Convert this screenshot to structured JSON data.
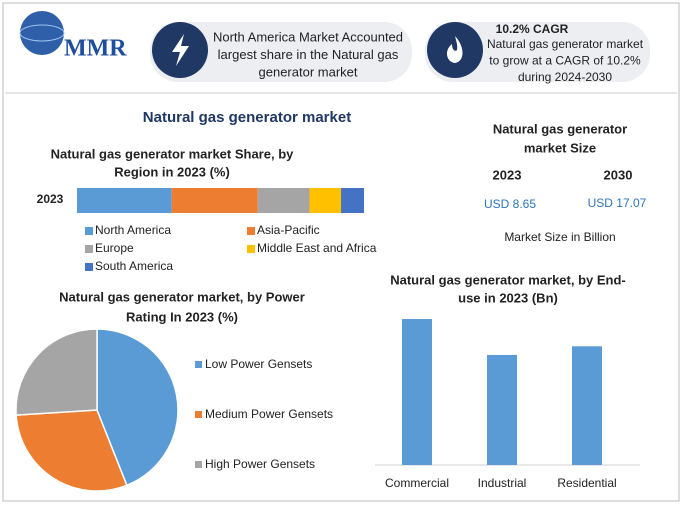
{
  "header": {
    "logo": "MMR",
    "box1_lines": [
      "North America Market Accounted",
      "largest share in the Natural gas",
      "generator market"
    ],
    "box2_title": "10.2% CAGR",
    "box2_lines": [
      "Natural gas generator market",
      "to grow at a CAGR of 10.2%",
      "during 2024-2030"
    ]
  },
  "title": "Natural gas generator market",
  "market_size": {
    "title_lines": [
      "Natural gas generator",
      "market Size"
    ],
    "years": [
      "2023",
      "2030"
    ],
    "values": [
      "USD 8.65",
      "USD 17.07"
    ],
    "note": "Market Size in Billion"
  },
  "chart_data": [
    {
      "type": "stacked-bar",
      "title_lines": [
        "Natural gas generator market Share, by",
        "Region in 2023 (%)"
      ],
      "categories": [
        "2023"
      ],
      "series": [
        {
          "name": "North America",
          "color": "#5b9bd5",
          "values": [
            33
          ]
        },
        {
          "name": "Asia-Pacific",
          "color": "#ed7d31",
          "values": [
            30
          ]
        },
        {
          "name": "Europe",
          "color": "#a5a5a5",
          "values": [
            18
          ]
        },
        {
          "name": "Middle East and Africa",
          "color": "#ffc000",
          "values": [
            11
          ]
        },
        {
          "name": "South America",
          "color": "#4472c4",
          "values": [
            8
          ]
        }
      ]
    },
    {
      "type": "pie",
      "title_lines": [
        "Natural gas generator market, by Power",
        "Rating In 2023 (%)"
      ],
      "categories": [
        "Low Power Gensets",
        "Medium Power Gensets",
        "High Power Gensets"
      ],
      "values": [
        44,
        30,
        26
      ],
      "colors": [
        "#5b9bd5",
        "#ed7d31",
        "#a5a5a5"
      ]
    },
    {
      "type": "bar",
      "title_lines": [
        "Natural gas generator market, by End-",
        "use in 2023 (Bn)"
      ],
      "categories": [
        "Commercial",
        "Industrial",
        "Residential"
      ],
      "values": [
        3.37,
        2.54,
        2.74
      ],
      "color": "#5b9bd5"
    }
  ]
}
